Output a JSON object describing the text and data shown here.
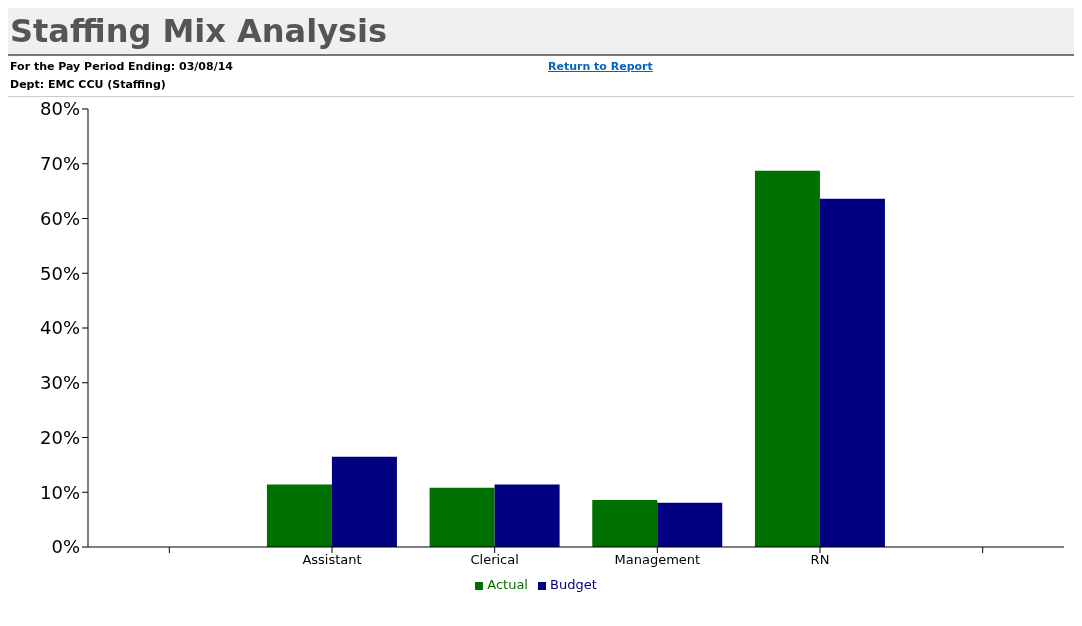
{
  "chart_data": {
    "type": "bar",
    "title": "Staffing Mix Analysis",
    "annotations": [
      "For the Pay Period Ending: 03/08/14",
      "Dept: EMC CCU (Staffing)",
      "Return to Report"
    ],
    "categories": [
      null,
      "Assistant",
      "Clerical",
      "Management",
      "RN",
      null
    ],
    "series": [
      {
        "name": "Actual",
        "color": "#007000",
        "values": [
          null,
          11.4,
          10.8,
          8.6,
          68.7,
          null
        ]
      },
      {
        "name": "Budget",
        "color": "#000080",
        "values": [
          null,
          16.5,
          11.4,
          8.1,
          63.6,
          null
        ]
      }
    ],
    "ylim": [
      0,
      80
    ],
    "yticks": [
      {
        "value": 0,
        "label": "0%"
      },
      {
        "value": 10,
        "label": "10%"
      },
      {
        "value": 20,
        "label": "20%"
      },
      {
        "value": 30,
        "label": "30%"
      },
      {
        "value": 40,
        "label": "40%"
      },
      {
        "value": 50,
        "label": "50%"
      },
      {
        "value": 60,
        "label": "60%"
      },
      {
        "value": 70,
        "label": "70%"
      },
      {
        "value": 80,
        "label": "80%"
      }
    ],
    "grid": false,
    "legend": "bottom"
  }
}
